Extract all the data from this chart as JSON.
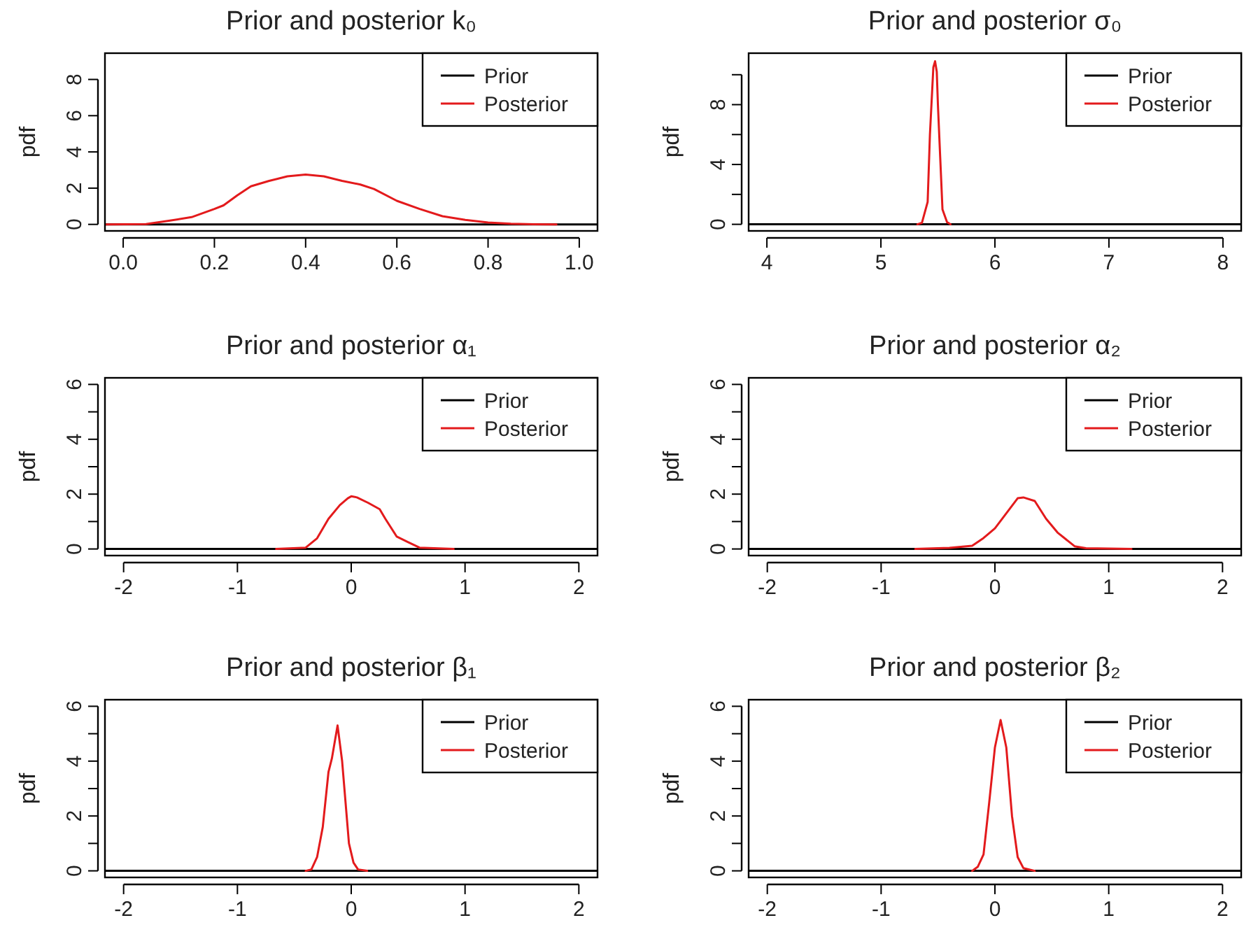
{
  "chart_data": [
    {
      "type": "line",
      "title": "Prior and posterior k₀",
      "ylabel": "pdf",
      "xlim": [
        -0.04,
        1.04
      ],
      "ylim": [
        -0.36,
        9.45
      ],
      "xticks": [
        {
          "value": 0,
          "label": "0.0"
        },
        0.2,
        0.4,
        0.6,
        0.8,
        {
          "value": 1,
          "label": "1.0"
        }
      ],
      "yticks": [
        0,
        2,
        4,
        6,
        8
      ],
      "legend": "top right",
      "grid": false,
      "series": [
        {
          "name": "Prior",
          "color": "#000000",
          "x": [
            -0.04,
            1.04
          ],
          "values": [
            0,
            0
          ]
        },
        {
          "name": "Posterior",
          "color": "#e31a1c",
          "x": [
            -0.04,
            0.05,
            0.1,
            0.15,
            0.2,
            0.22,
            0.25,
            0.28,
            0.32,
            0.36,
            0.4,
            0.44,
            0.48,
            0.52,
            0.55,
            0.6,
            0.65,
            0.7,
            0.75,
            0.8,
            0.85,
            0.9,
            0.95
          ],
          "values": [
            0,
            0.02,
            0.2,
            0.4,
            0.85,
            1.05,
            1.6,
            2.1,
            2.4,
            2.65,
            2.75,
            2.65,
            2.4,
            2.2,
            1.95,
            1.3,
            0.85,
            0.45,
            0.25,
            0.1,
            0.04,
            0.01,
            0
          ]
        }
      ]
    },
    {
      "type": "line",
      "title": "Prior and posterior σ₀",
      "ylabel": "pdf",
      "xlim": [
        3.84,
        8.16
      ],
      "ylim": [
        -0.44,
        11.44
      ],
      "xticks": [
        4,
        5,
        6,
        7,
        8
      ],
      "yticks": [
        0,
        {
          "value": 2,
          "label": null
        },
        4,
        {
          "value": 6,
          "label": null
        },
        8,
        {
          "value": 10,
          "label": null
        }
      ],
      "legend": "top right",
      "grid": false,
      "series": [
        {
          "name": "Prior",
          "color": "#000000",
          "x": [
            3.84,
            8.16
          ],
          "values": [
            0,
            0
          ]
        },
        {
          "name": "Posterior",
          "color": "#e31a1c",
          "x": [
            5.32,
            5.36,
            5.41,
            5.43,
            5.46,
            5.475,
            5.49,
            5.5,
            5.52,
            5.54,
            5.58,
            5.61
          ],
          "values": [
            0,
            0.1,
            1.5,
            6,
            10.5,
            10.9,
            10.2,
            8,
            4.5,
            1,
            0.15,
            0
          ]
        }
      ]
    },
    {
      "type": "line",
      "title": "Prior and posterior α₁",
      "ylabel": "pdf",
      "xlim": [
        -2.164,
        2.164
      ],
      "ylim": [
        -0.24,
        6.24
      ],
      "xticks": [
        -2,
        -1,
        0,
        1,
        2
      ],
      "yticks": [
        0,
        {
          "value": 1,
          "label": null
        },
        2,
        {
          "value": 3,
          "label": null
        },
        4,
        {
          "value": 5,
          "label": null
        },
        6
      ],
      "legend": "top right",
      "grid": false,
      "series": [
        {
          "name": "Prior",
          "color": "#000000",
          "x": [
            -2.164,
            2.164
          ],
          "values": [
            0,
            0
          ]
        },
        {
          "name": "Posterior",
          "color": "#e31a1c",
          "x": [
            -0.66,
            -0.4,
            -0.3,
            -0.2,
            -0.1,
            -0.03,
            0,
            0.05,
            0.15,
            0.25,
            0.3,
            0.4,
            0.5,
            0.6,
            0.9
          ],
          "values": [
            0,
            0.05,
            0.39,
            1.1,
            1.6,
            1.85,
            1.92,
            1.88,
            1.68,
            1.45,
            1.1,
            0.45,
            0.25,
            0.05,
            0
          ]
        }
      ]
    },
    {
      "type": "line",
      "title": "Prior and posterior α₂",
      "ylabel": "pdf",
      "xlim": [
        -2.164,
        2.164
      ],
      "ylim": [
        -0.24,
        6.24
      ],
      "xticks": [
        -2,
        -1,
        0,
        1,
        2
      ],
      "yticks": [
        0,
        {
          "value": 1,
          "label": null
        },
        2,
        {
          "value": 3,
          "label": null
        },
        4,
        {
          "value": 5,
          "label": null
        },
        6
      ],
      "legend": "top right",
      "grid": false,
      "series": [
        {
          "name": "Prior",
          "color": "#000000",
          "x": [
            -2.164,
            2.164
          ],
          "values": [
            0,
            0
          ]
        },
        {
          "name": "Posterior",
          "color": "#e31a1c",
          "x": [
            -0.7,
            -0.4,
            -0.2,
            -0.1,
            0,
            0.1,
            0.2,
            0.25,
            0.35,
            0.45,
            0.55,
            0.7,
            0.8,
            1.2
          ],
          "values": [
            0,
            0.04,
            0.12,
            0.4,
            0.75,
            1.3,
            1.85,
            1.88,
            1.75,
            1.1,
            0.6,
            0.1,
            0.03,
            0
          ]
        }
      ]
    },
    {
      "type": "line",
      "title": "Prior and posterior β₁",
      "ylabel": "pdf",
      "xlim": [
        -2.164,
        2.164
      ],
      "ylim": [
        -0.24,
        6.24
      ],
      "xticks": [
        -2,
        -1,
        0,
        1,
        2
      ],
      "yticks": [
        0,
        {
          "value": 1,
          "label": null
        },
        2,
        {
          "value": 3,
          "label": null
        },
        4,
        {
          "value": 5,
          "label": null
        },
        6
      ],
      "legend": "top right",
      "grid": false,
      "series": [
        {
          "name": "Prior",
          "color": "#000000",
          "x": [
            -2.164,
            2.164
          ],
          "values": [
            0,
            0
          ]
        },
        {
          "name": "Posterior",
          "color": "#e31a1c",
          "x": [
            -0.4,
            -0.35,
            -0.3,
            -0.25,
            -0.2,
            -0.17,
            -0.12,
            -0.08,
            -0.05,
            -0.02,
            0.02,
            0.06,
            0.14
          ],
          "values": [
            0,
            0.05,
            0.5,
            1.6,
            3.6,
            4.1,
            5.3,
            4,
            2.5,
            1,
            0.3,
            0.05,
            0
          ]
        }
      ]
    },
    {
      "type": "line",
      "title": "Prior and posterior β₂",
      "ylabel": "pdf",
      "xlim": [
        -2.164,
        2.164
      ],
      "ylim": [
        -0.24,
        6.24
      ],
      "xticks": [
        -2,
        -1,
        0,
        1,
        2
      ],
      "yticks": [
        0,
        {
          "value": 1,
          "label": null
        },
        2,
        {
          "value": 3,
          "label": null
        },
        4,
        {
          "value": 5,
          "label": null
        },
        6
      ],
      "legend": "top right",
      "grid": false,
      "series": [
        {
          "name": "Prior",
          "color": "#000000",
          "x": [
            -2.164,
            2.164
          ],
          "values": [
            0,
            0
          ]
        },
        {
          "name": "Posterior",
          "color": "#e31a1c",
          "x": [
            -0.2,
            -0.15,
            -0.1,
            -0.05,
            0,
            0.05,
            0.1,
            0.15,
            0.2,
            0.25,
            0.35
          ],
          "values": [
            0,
            0.15,
            0.6,
            2.5,
            4.5,
            5.5,
            4.5,
            2,
            0.5,
            0.1,
            0
          ]
        }
      ]
    }
  ]
}
